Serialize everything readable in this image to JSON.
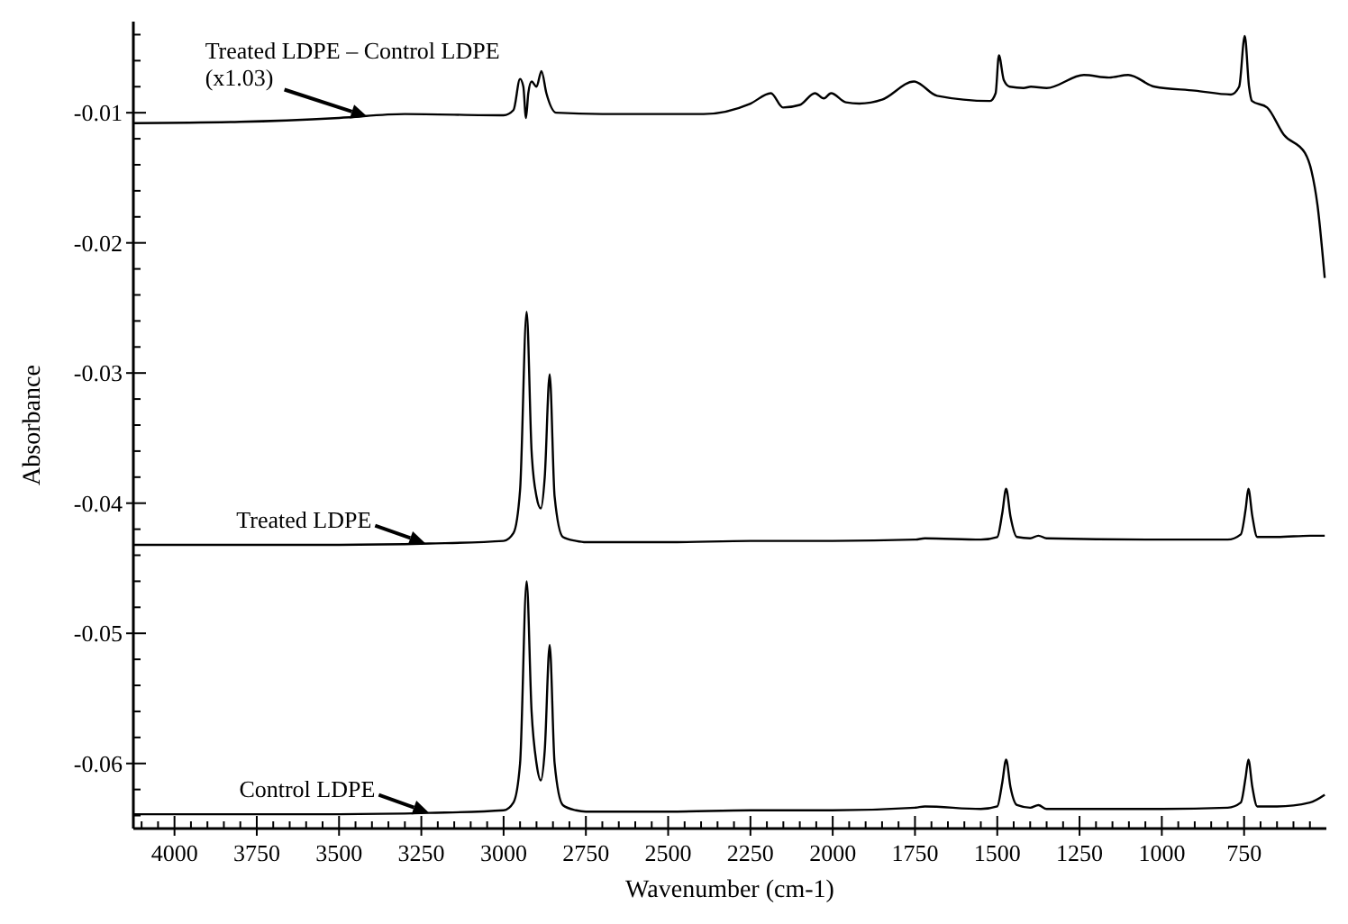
{
  "chart_data": {
    "type": "line",
    "xlabel": "Wavenumber (cm-1)",
    "ylabel": "Absorbance",
    "xlim": [
      4125,
      500
    ],
    "ylim": [
      -0.065,
      -0.003
    ],
    "xticks": [
      4000,
      3750,
      3500,
      3250,
      3000,
      2750,
      2500,
      2250,
      2000,
      1750,
      1500,
      1250,
      1000,
      750,
      {
        "value": 4100,
        "label": null
      },
      {
        "value": 4050,
        "label": null
      },
      {
        "value": 3950,
        "label": null
      },
      {
        "value": 3900,
        "label": null
      },
      {
        "value": 3850,
        "label": null
      },
      {
        "value": 3800,
        "label": null
      },
      {
        "value": 3700,
        "label": null
      },
      {
        "value": 3650,
        "label": null
      },
      {
        "value": 3600,
        "label": null
      },
      {
        "value": 3550,
        "label": null
      },
      {
        "value": 3450,
        "label": null
      },
      {
        "value": 3400,
        "label": null
      },
      {
        "value": 3350,
        "label": null
      },
      {
        "value": 3300,
        "label": null
      },
      {
        "value": 3200,
        "label": null
      },
      {
        "value": 3150,
        "label": null
      },
      {
        "value": 3100,
        "label": null
      },
      {
        "value": 3050,
        "label": null
      },
      {
        "value": 2950,
        "label": null
      },
      {
        "value": 2900,
        "label": null
      },
      {
        "value": 2850,
        "label": null
      },
      {
        "value": 2800,
        "label": null
      },
      {
        "value": 2700,
        "label": null
      },
      {
        "value": 2650,
        "label": null
      },
      {
        "value": 2600,
        "label": null
      },
      {
        "value": 2550,
        "label": null
      },
      {
        "value": 2450,
        "label": null
      },
      {
        "value": 2400,
        "label": null
      },
      {
        "value": 2350,
        "label": null
      },
      {
        "value": 2300,
        "label": null
      },
      {
        "value": 2200,
        "label": null
      },
      {
        "value": 2150,
        "label": null
      },
      {
        "value": 2100,
        "label": null
      },
      {
        "value": 2050,
        "label": null
      },
      {
        "value": 1950,
        "label": null
      },
      {
        "value": 1900,
        "label": null
      },
      {
        "value": 1850,
        "label": null
      },
      {
        "value": 1800,
        "label": null
      },
      {
        "value": 1700,
        "label": null
      },
      {
        "value": 1650,
        "label": null
      },
      {
        "value": 1600,
        "label": null
      },
      {
        "value": 1550,
        "label": null
      },
      {
        "value": 1450,
        "label": null
      },
      {
        "value": 1400,
        "label": null
      },
      {
        "value": 1350,
        "label": null
      },
      {
        "value": 1300,
        "label": null
      },
      {
        "value": 1200,
        "label": null
      },
      {
        "value": 1150,
        "label": null
      },
      {
        "value": 1100,
        "label": null
      },
      {
        "value": 1050,
        "label": null
      },
      {
        "value": 950,
        "label": null
      },
      {
        "value": 900,
        "label": null
      },
      {
        "value": 850,
        "label": null
      },
      {
        "value": 800,
        "label": null
      },
      {
        "value": 700,
        "label": null
      },
      {
        "value": 650,
        "label": null
      },
      {
        "value": 600,
        "label": null
      },
      {
        "value": 550,
        "label": null
      }
    ],
    "yticks": [
      -0.06,
      -0.05,
      -0.04,
      -0.03,
      -0.02,
      -0.01,
      {
        "value": -0.064,
        "label": null
      },
      {
        "value": -0.062,
        "label": null
      },
      {
        "value": -0.058,
        "label": null
      },
      {
        "value": -0.056,
        "label": null
      },
      {
        "value": -0.054,
        "label": null
      },
      {
        "value": -0.052,
        "label": null
      },
      {
        "value": -0.048,
        "label": null
      },
      {
        "value": -0.046,
        "label": null
      },
      {
        "value": -0.044,
        "label": null
      },
      {
        "value": -0.042,
        "label": null
      },
      {
        "value": -0.038,
        "label": null
      },
      {
        "value": -0.036,
        "label": null
      },
      {
        "value": -0.034,
        "label": null
      },
      {
        "value": -0.032,
        "label": null
      },
      {
        "value": -0.028,
        "label": null
      },
      {
        "value": -0.026,
        "label": null
      },
      {
        "value": -0.024,
        "label": null
      },
      {
        "value": -0.022,
        "label": null
      },
      {
        "value": -0.018,
        "label": null
      },
      {
        "value": -0.016,
        "label": null
      },
      {
        "value": -0.014,
        "label": null
      },
      {
        "value": -0.012,
        "label": null
      },
      {
        "value": -0.008,
        "label": null
      },
      {
        "value": -0.006,
        "label": null
      },
      {
        "value": -0.004,
        "label": null
      }
    ],
    "grid": false,
    "marker": "none",
    "line_style": "solid",
    "series": [
      {
        "color": "#000000",
        "x": [
          4124,
          3800,
          3500,
          3300,
          3000,
          2970,
          2950,
          2940,
          2932,
          2925,
          2915,
          2900,
          2885,
          2870,
          2840,
          2700,
          2392,
          2250,
          2188,
          2151,
          2100,
          2054,
          2027,
          2005,
          1960,
          1919,
          1850,
          1753,
          1683,
          1522,
          1505,
          1495,
          1480,
          1462,
          1420,
          1398,
          1350,
          1237,
          1160,
          1102,
          1022,
          900,
          790,
          765,
          748,
          735,
          726,
          680,
          629,
          565,
          545,
          527,
          505
        ],
        "values": [
          -0.0108,
          -0.0107,
          -0.0104,
          -0.0101,
          -0.0102,
          -0.0098,
          -0.0074,
          -0.008,
          -0.0104,
          -0.0085,
          -0.0076,
          -0.008,
          -0.0068,
          -0.0085,
          -0.01,
          -0.0101,
          -0.0101,
          -0.0093,
          -0.0085,
          -0.0096,
          -0.0094,
          -0.0085,
          -0.0089,
          -0.0085,
          -0.0092,
          -0.0093,
          -0.009,
          -0.0076,
          -0.0087,
          -0.0091,
          -0.0085,
          -0.0056,
          -0.0075,
          -0.008,
          -0.0081,
          -0.008,
          -0.0081,
          -0.0071,
          -0.0073,
          -0.0071,
          -0.008,
          -0.0083,
          -0.0086,
          -0.008,
          -0.0041,
          -0.008,
          -0.0091,
          -0.0096,
          -0.0117,
          -0.0131,
          -0.0145,
          -0.0171,
          -0.0227
        ]
      },
      {
        "color": "#000000",
        "x": [
          4124,
          3500,
          3226,
          3000,
          2970,
          2950,
          2930,
          2915,
          2900,
          2887,
          2875,
          2860,
          2845,
          2820,
          2780,
          2750,
          2500,
          2250,
          2000,
          1750,
          1720,
          1550,
          1500,
          1485,
          1473,
          1460,
          1440,
          1400,
          1375,
          1350,
          1000,
          800,
          760,
          745,
          737,
          725,
          710,
          650,
          550,
          505
        ],
        "values": [
          -0.0432,
          -0.0432,
          -0.0431,
          -0.0429,
          -0.0423,
          -0.039,
          -0.0253,
          -0.036,
          -0.0395,
          -0.0404,
          -0.038,
          -0.0301,
          -0.0395,
          -0.0426,
          -0.0429,
          -0.043,
          -0.043,
          -0.0429,
          -0.0429,
          -0.0428,
          -0.0427,
          -0.0428,
          -0.0426,
          -0.0408,
          -0.0389,
          -0.041,
          -0.0426,
          -0.0427,
          -0.0425,
          -0.0427,
          -0.0428,
          -0.0428,
          -0.0424,
          -0.0404,
          -0.0389,
          -0.041,
          -0.0426,
          -0.0426,
          -0.0425,
          -0.0425
        ]
      },
      {
        "color": "#000000",
        "x": [
          4124,
          3500,
          3226,
          3000,
          2970,
          2950,
          2930,
          2915,
          2900,
          2887,
          2875,
          2860,
          2845,
          2820,
          2780,
          2750,
          2500,
          2250,
          2000,
          1750,
          1720,
          1550,
          1500,
          1485,
          1473,
          1460,
          1440,
          1400,
          1375,
          1350,
          1000,
          800,
          760,
          745,
          737,
          725,
          710,
          650,
          550,
          505
        ],
        "values": [
          -0.0639,
          -0.0639,
          -0.0638,
          -0.0636,
          -0.063,
          -0.06,
          -0.046,
          -0.056,
          -0.06,
          -0.0613,
          -0.059,
          -0.0509,
          -0.06,
          -0.0632,
          -0.0636,
          -0.0637,
          -0.0637,
          -0.0636,
          -0.0636,
          -0.0634,
          -0.0633,
          -0.0635,
          -0.0633,
          -0.0615,
          -0.0597,
          -0.0618,
          -0.0632,
          -0.0634,
          -0.0632,
          -0.0635,
          -0.0635,
          -0.0634,
          -0.063,
          -0.061,
          -0.0597,
          -0.0618,
          -0.0633,
          -0.0633,
          -0.063,
          -0.0624
        ]
      }
    ],
    "annotations": [
      {
        "text": "Treated LDPE – Control LDPE\n(x1.03)",
        "x": 3414,
        "y": -0.0103
      },
      {
        "text": "Treated LDPE",
        "x": 3237,
        "y": -0.0431
      },
      {
        "text": "Control LDPE",
        "x": 3226,
        "y": -0.0638
      }
    ]
  }
}
